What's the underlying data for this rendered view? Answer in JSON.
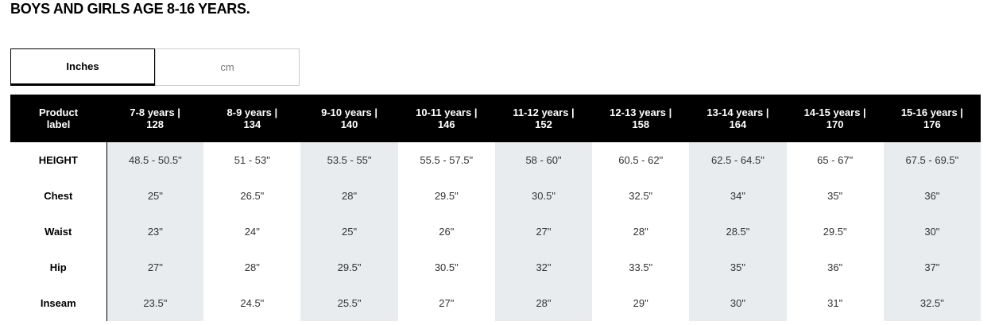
{
  "header": {
    "title": "BOYS AND GIRLS AGE 8-16 YEARS."
  },
  "tabs": [
    "Inches",
    "cm"
  ],
  "table": {
    "columns": [
      "Product\nlabel",
      "7-8 years |\n128",
      "8-9 years |\n134",
      "9-10 years |\n140",
      "10-11 years |\n146",
      "11-12 years |\n152",
      "12-13 years |\n158",
      "13-14 years |\n164",
      "14-15 years |\n170",
      "15-16 years |\n176"
    ],
    "rows": [
      [
        "HEIGHT",
        "48.5 - 50.5\"",
        "51 - 53\"",
        "53.5 - 55\"",
        "55.5 - 57.5\"",
        "58 - 60\"",
        "60.5 - 62\"",
        "62.5 - 64.5\"",
        "65 - 67\"",
        "67.5 - 69.5\""
      ],
      [
        "Chest",
        "25\"",
        "26.5\"",
        "28\"",
        "29.5\"",
        "30.5\"",
        "32.5\"",
        "34\"",
        "35\"",
        "36\""
      ],
      [
        "Waist",
        "23\"",
        "24\"",
        "25\"",
        "26\"",
        "27\"",
        "28\"",
        "28.5\"",
        "29.5\"",
        "30\""
      ],
      [
        "Hip",
        "27\"",
        "28\"",
        "29.5\"",
        "30.5\"",
        "32\"",
        "33.5\"",
        "35\"",
        "36\"",
        "37\""
      ],
      [
        "Inseam",
        "23.5\"",
        "24.5\"",
        "25.5\"",
        "27\"",
        "28\"",
        "29\"",
        "30\"",
        "31\"",
        "32.5\""
      ]
    ]
  }
}
